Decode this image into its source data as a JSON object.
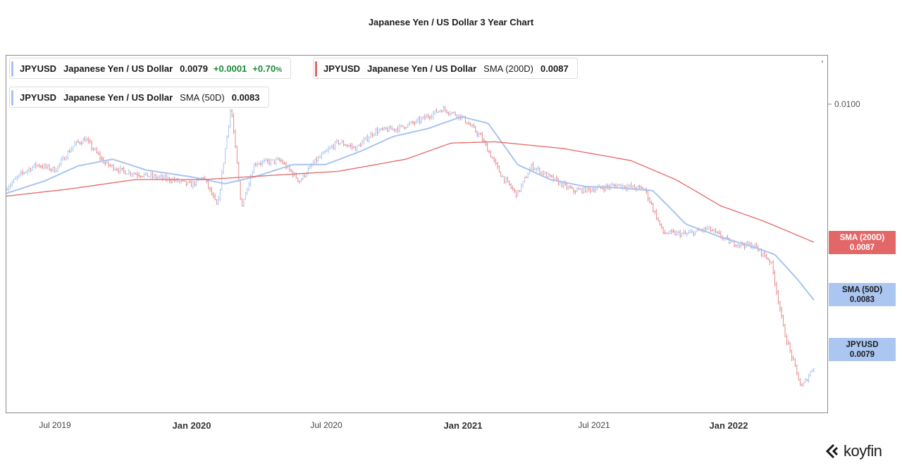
{
  "title": "Japanese Yen / US Dollar 3 Year Chart",
  "legend": {
    "price": {
      "symbol": "JPYUSD",
      "name": "Japanese Yen / US Dollar",
      "value": "0.0079",
      "change": "+0.0001",
      "pct": "+0.70",
      "pct_symbol": "%",
      "color": "#a9c4f0"
    },
    "sma200": {
      "symbol": "JPYUSD",
      "name": "Japanese Yen / US Dollar",
      "indicator": "SMA (200D)",
      "value": "0.0087",
      "color": "#e36767"
    },
    "sma50": {
      "symbol": "JPYUSD",
      "name": "Japanese Yen / US Dollar",
      "indicator": "SMA (50D)",
      "value": "0.0083",
      "color": "#a9c4f0"
    }
  },
  "tags": {
    "sma200": {
      "label": "SMA (200D)",
      "value": "0.0087"
    },
    "sma50": {
      "label": "SMA (50D)",
      "value": "0.0083"
    },
    "price": {
      "label": "JPYUSD",
      "value": "0.0079"
    }
  },
  "y_axis": {
    "tick": "0.0100"
  },
  "x_axis": {
    "labels": [
      {
        "text": "Jul 2019",
        "major": false
      },
      {
        "text": "Jan 2020",
        "major": true
      },
      {
        "text": "Jul 2020",
        "major": false
      },
      {
        "text": "Jan 2021",
        "major": true
      },
      {
        "text": "Jul 2021",
        "major": false
      },
      {
        "text": "Jan 2022",
        "major": true
      }
    ]
  },
  "brand": "koyfin",
  "chart_data": {
    "type": "line",
    "title": "Japanese Yen / US Dollar 3 Year Chart",
    "xlabel": "",
    "ylabel": "",
    "ylim": [
      0.0076,
      0.0101
    ],
    "x_range": [
      "2019-05-10",
      "2022-05-09"
    ],
    "y_scale": "log",
    "grid": false,
    "legend_position": "top-left",
    "price_style": "ohlc",
    "up_color": "#a9c4f0",
    "down_color": "#e8898a",
    "series": [
      {
        "name": "JPYUSD",
        "points": [
          [
            "2019-05-10",
            0.00909
          ],
          [
            "2019-06-01",
            0.0092
          ],
          [
            "2019-06-20",
            0.00926
          ],
          [
            "2019-07-15",
            0.00922
          ],
          [
            "2019-08-10",
            0.00941
          ],
          [
            "2019-08-25",
            0.00945
          ],
          [
            "2019-09-20",
            0.00927
          ],
          [
            "2019-10-15",
            0.00921
          ],
          [
            "2019-11-15",
            0.00918
          ],
          [
            "2019-12-20",
            0.00915
          ],
          [
            "2020-01-15",
            0.00911
          ],
          [
            "2020-02-01",
            0.00917
          ],
          [
            "2020-02-20",
            0.00895
          ],
          [
            "2020-03-09",
            0.0097
          ],
          [
            "2020-03-23",
            0.00895
          ],
          [
            "2020-04-10",
            0.00927
          ],
          [
            "2020-05-15",
            0.00929
          ],
          [
            "2020-06-10",
            0.00914
          ],
          [
            "2020-06-30",
            0.00928
          ],
          [
            "2020-08-01",
            0.00943
          ],
          [
            "2020-08-25",
            0.00938
          ],
          [
            "2020-09-20",
            0.00951
          ],
          [
            "2020-10-20",
            0.00953
          ],
          [
            "2020-11-15",
            0.00958
          ],
          [
            "2020-12-20",
            0.00968
          ],
          [
            "2021-01-15",
            0.00962
          ],
          [
            "2021-02-10",
            0.00947
          ],
          [
            "2021-03-10",
            0.00918
          ],
          [
            "2021-03-31",
            0.00904
          ],
          [
            "2021-04-20",
            0.00925
          ],
          [
            "2021-05-20",
            0.00915
          ],
          [
            "2021-06-15",
            0.00907
          ],
          [
            "2021-07-10",
            0.00908
          ],
          [
            "2021-08-15",
            0.00911
          ],
          [
            "2021-09-20",
            0.00908
          ],
          [
            "2021-10-15",
            0.00877
          ],
          [
            "2021-11-15",
            0.00876
          ],
          [
            "2021-12-15",
            0.0088
          ],
          [
            "2022-01-15",
            0.0087
          ],
          [
            "2022-02-15",
            0.00868
          ],
          [
            "2022-03-10",
            0.00857
          ],
          [
            "2022-03-28",
            0.0081
          ],
          [
            "2022-04-20",
            0.00775
          ],
          [
            "2022-05-09",
            0.0079
          ]
        ]
      },
      {
        "name": "SMA (50D)",
        "color": "#a9c4f0",
        "points": [
          [
            "2019-05-10",
            0.00905
          ],
          [
            "2019-07-01",
            0.00914
          ],
          [
            "2019-08-15",
            0.00925
          ],
          [
            "2019-10-01",
            0.0093
          ],
          [
            "2019-11-15",
            0.00922
          ],
          [
            "2020-01-15",
            0.00917
          ],
          [
            "2020-03-01",
            0.00912
          ],
          [
            "2020-04-10",
            0.00917
          ],
          [
            "2020-06-01",
            0.00926
          ],
          [
            "2020-07-15",
            0.00926
          ],
          [
            "2020-09-01",
            0.00936
          ],
          [
            "2020-10-15",
            0.00947
          ],
          [
            "2020-12-01",
            0.00953
          ],
          [
            "2021-01-15",
            0.00962
          ],
          [
            "2021-02-20",
            0.00957
          ],
          [
            "2021-04-01",
            0.00926
          ],
          [
            "2021-05-15",
            0.00915
          ],
          [
            "2021-07-01",
            0.0091
          ],
          [
            "2021-08-15",
            0.00909
          ],
          [
            "2021-10-01",
            0.00907
          ],
          [
            "2021-11-15",
            0.00883
          ],
          [
            "2022-01-01",
            0.00874
          ],
          [
            "2022-02-15",
            0.00867
          ],
          [
            "2022-03-15",
            0.00862
          ],
          [
            "2022-04-15",
            0.00845
          ],
          [
            "2022-05-09",
            0.0083
          ]
        ]
      },
      {
        "name": "SMA (200D)",
        "color": "#e36767",
        "points": [
          [
            "2019-05-10",
            0.00903
          ],
          [
            "2019-08-01",
            0.00908
          ],
          [
            "2019-11-01",
            0.00915
          ],
          [
            "2020-02-01",
            0.00915
          ],
          [
            "2020-05-01",
            0.00918
          ],
          [
            "2020-08-01",
            0.00921
          ],
          [
            "2020-11-01",
            0.0093
          ],
          [
            "2021-01-01",
            0.00942
          ],
          [
            "2021-03-01",
            0.00943
          ],
          [
            "2021-06-01",
            0.00938
          ],
          [
            "2021-09-01",
            0.00929
          ],
          [
            "2021-11-01",
            0.00915
          ],
          [
            "2022-01-01",
            0.00896
          ],
          [
            "2022-03-01",
            0.00885
          ],
          [
            "2022-05-09",
            0.0087
          ]
        ]
      }
    ]
  }
}
